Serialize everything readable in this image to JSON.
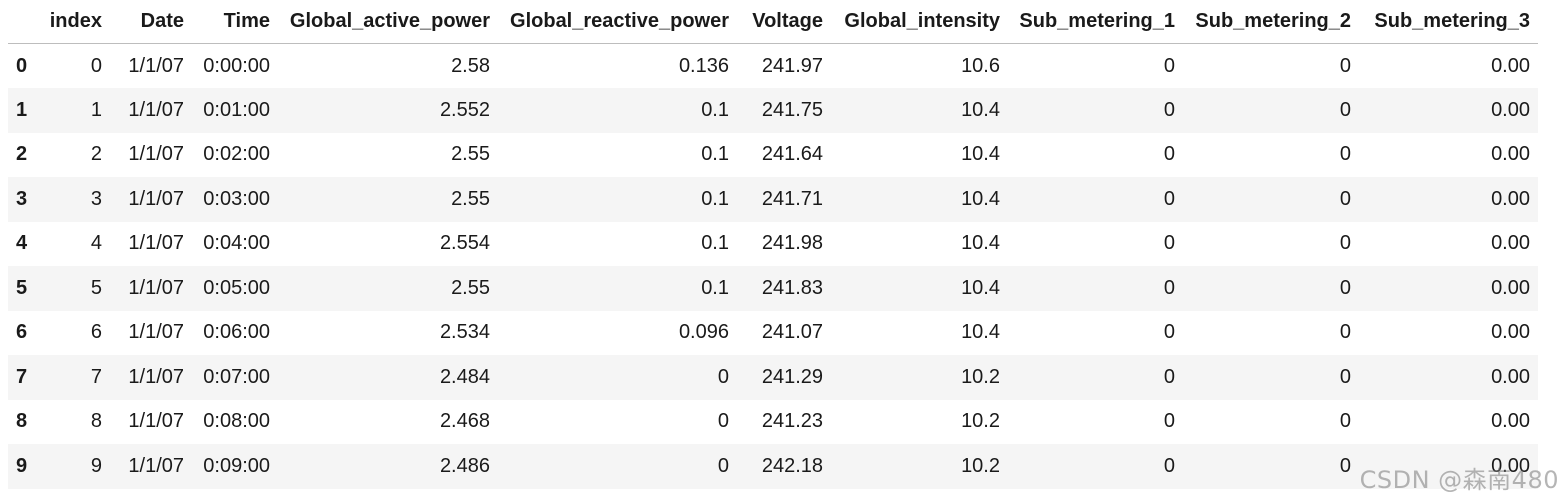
{
  "table": {
    "index_header": "",
    "columns": [
      "index",
      "Date",
      "Time",
      "Global_active_power",
      "Global_reactive_power",
      "Voltage",
      "Global_intensity",
      "Sub_metering_1",
      "Sub_metering_2",
      "Sub_metering_3"
    ],
    "rows": [
      {
        "label": "0",
        "cells": [
          "0",
          "1/1/07",
          "0:00:00",
          "2.58",
          "0.136",
          "241.97",
          "10.6",
          "0",
          "0",
          "0.00"
        ]
      },
      {
        "label": "1",
        "cells": [
          "1",
          "1/1/07",
          "0:01:00",
          "2.552",
          "0.1",
          "241.75",
          "10.4",
          "0",
          "0",
          "0.00"
        ]
      },
      {
        "label": "2",
        "cells": [
          "2",
          "1/1/07",
          "0:02:00",
          "2.55",
          "0.1",
          "241.64",
          "10.4",
          "0",
          "0",
          "0.00"
        ]
      },
      {
        "label": "3",
        "cells": [
          "3",
          "1/1/07",
          "0:03:00",
          "2.55",
          "0.1",
          "241.71",
          "10.4",
          "0",
          "0",
          "0.00"
        ]
      },
      {
        "label": "4",
        "cells": [
          "4",
          "1/1/07",
          "0:04:00",
          "2.554",
          "0.1",
          "241.98",
          "10.4",
          "0",
          "0",
          "0.00"
        ]
      },
      {
        "label": "5",
        "cells": [
          "5",
          "1/1/07",
          "0:05:00",
          "2.55",
          "0.1",
          "241.83",
          "10.4",
          "0",
          "0",
          "0.00"
        ]
      },
      {
        "label": "6",
        "cells": [
          "6",
          "1/1/07",
          "0:06:00",
          "2.534",
          "0.096",
          "241.07",
          "10.4",
          "0",
          "0",
          "0.00"
        ]
      },
      {
        "label": "7",
        "cells": [
          "7",
          "1/1/07",
          "0:07:00",
          "2.484",
          "0",
          "241.29",
          "10.2",
          "0",
          "0",
          "0.00"
        ]
      },
      {
        "label": "8",
        "cells": [
          "8",
          "1/1/07",
          "0:08:00",
          "2.468",
          "0",
          "241.23",
          "10.2",
          "0",
          "0",
          "0.00"
        ]
      },
      {
        "label": "9",
        "cells": [
          "9",
          "1/1/07",
          "0:09:00",
          "2.486",
          "0",
          "242.18",
          "10.2",
          "0",
          "0",
          "0.00"
        ]
      }
    ]
  },
  "watermark": "CSDN @森南480"
}
